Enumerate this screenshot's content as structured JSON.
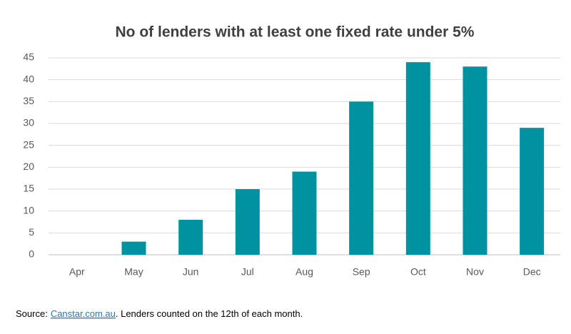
{
  "chart_data": {
    "type": "bar",
    "title": "No of lenders with at least one fixed rate under 5%",
    "categories": [
      "Apr",
      "May",
      "Jun",
      "Jul",
      "Aug",
      "Sep",
      "Oct",
      "Nov",
      "Dec"
    ],
    "values": [
      0,
      3,
      8,
      15,
      19,
      35,
      44,
      43,
      29
    ],
    "color": "#0092a1",
    "ylim": [
      0,
      45
    ],
    "yticks": [
      0,
      5,
      10,
      15,
      20,
      25,
      30,
      35,
      40,
      45
    ],
    "grid": true
  },
  "source": {
    "prefix": "Source:",
    "link": "Canstar.com.au",
    "text": ". Lenders counted on the 12th of each month."
  }
}
